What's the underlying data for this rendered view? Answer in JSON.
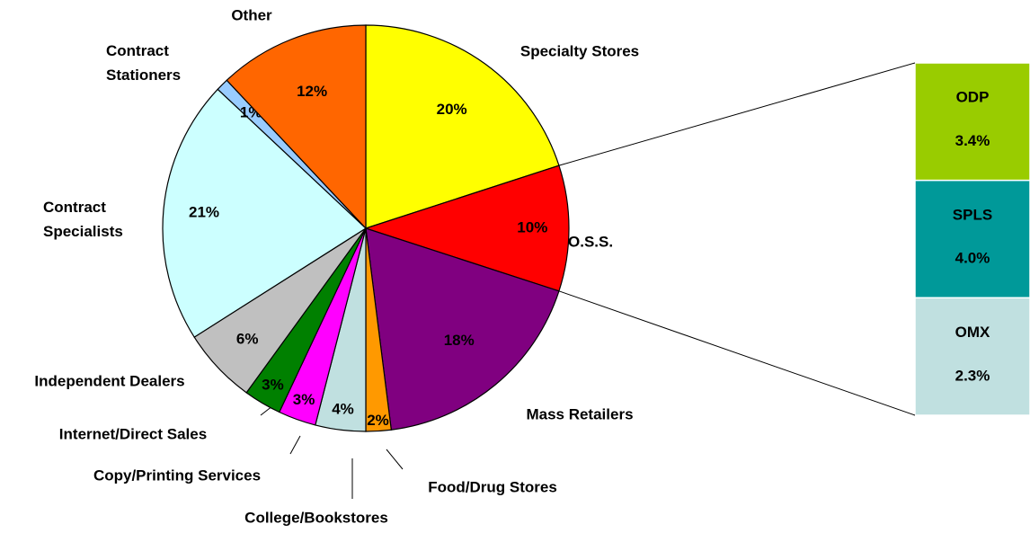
{
  "chart_data": {
    "type": "pie",
    "categories": [
      "Specialty Stores",
      "O.S.S.",
      "Mass Retailers",
      "Food/Drug Stores",
      "College/Bookstores",
      "Copy/Printing Services",
      "Internet/Direct Sales",
      "Independent Dealers",
      "Contract Specialists",
      "Contract Stationers",
      "Other"
    ],
    "values": [
      20,
      10,
      18,
      2,
      4,
      3,
      3,
      6,
      21,
      1,
      12
    ],
    "value_labels": [
      "20%",
      "10%",
      "18%",
      "2%",
      "4%",
      "3%",
      "3%",
      "6%",
      "21%",
      "1%",
      "12%"
    ],
    "colors": [
      "#ffff00",
      "#ff0000",
      "#800080",
      "#ff9900",
      "#c0e0e0",
      "#ff00ff",
      "#008000",
      "#c0c0c0",
      "#ccffff",
      "#99ccff",
      "#ff6600"
    ],
    "breakdown": {
      "categories": [
        "ODP",
        "SPLS",
        "OMX"
      ],
      "values": [
        3.4,
        4.0,
        2.3
      ],
      "value_labels": [
        "3.4%",
        "4.0%",
        "2.3%"
      ],
      "colors": [
        "#99cc00",
        "#009999",
        "#c0e0e0"
      ]
    }
  }
}
